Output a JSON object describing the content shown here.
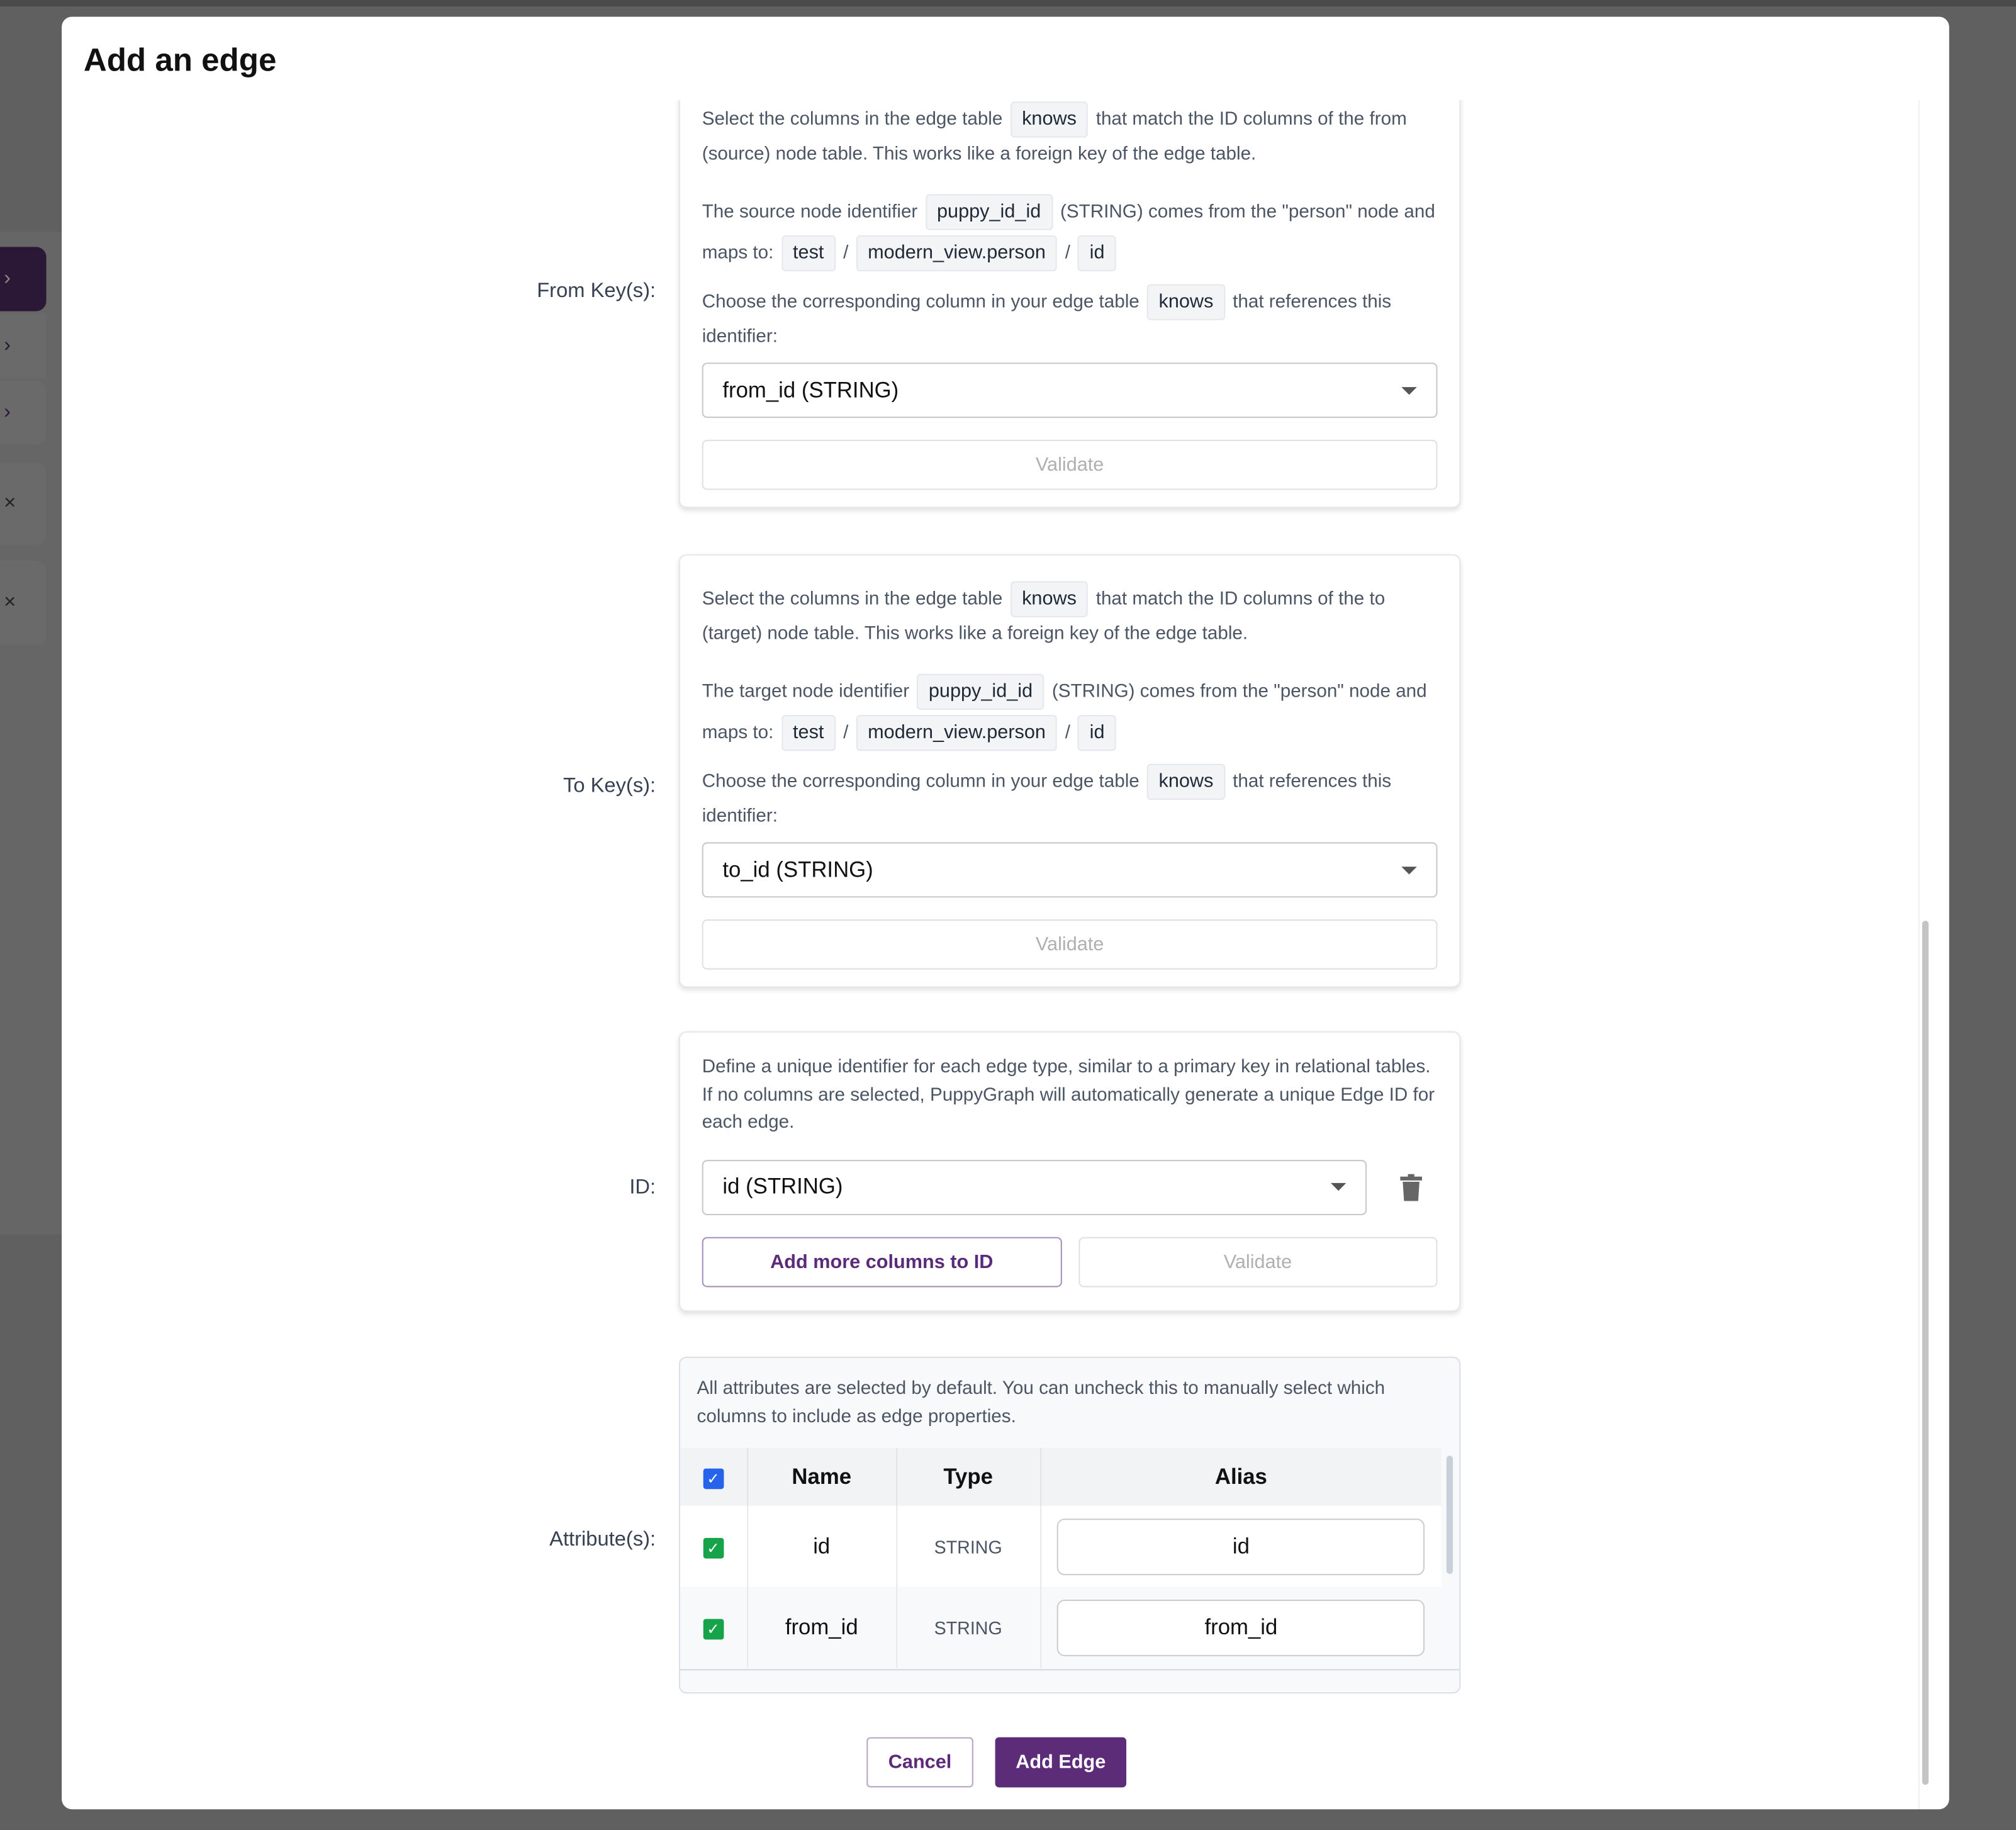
{
  "dialog": {
    "title": "Add an edge"
  },
  "sidebar": {
    "icons": [
      "chevron-right",
      "chevron-right",
      "chevron-right",
      "close",
      "close"
    ],
    "glyphs": {
      "chevron": "›",
      "close": "×"
    }
  },
  "from_key": {
    "label": "From Key(s):",
    "intro_a": "Select the columns in the edge table",
    "table": "knows",
    "intro_b": "that match the ID columns of the from (source) node table. This works like a foreign key of the edge table.",
    "ident_a": "The source node identifier",
    "identifier": "puppy_id_id",
    "ident_b": "(STRING) comes from the \"person\" node and maps to:",
    "path": [
      "test",
      "modern_view.person",
      "id"
    ],
    "sep": "/",
    "choose_a": "Choose the corresponding column in your edge table",
    "choose_b": "that references this identifier:",
    "selected": "from_id (STRING)",
    "validate": "Validate"
  },
  "to_key": {
    "label": "To Key(s):",
    "intro_a": "Select the columns in the edge table",
    "table": "knows",
    "intro_b": "that match the ID columns of the to (target) node table. This works like a foreign key of the edge table.",
    "ident_a": "The target node identifier",
    "identifier": "puppy_id_id",
    "ident_b": "(STRING) comes from the \"person\" node and maps to:",
    "path": [
      "test",
      "modern_view.person",
      "id"
    ],
    "sep": "/",
    "choose_a": "Choose the corresponding column in your edge table",
    "choose_b": "that references this identifier:",
    "selected": "to_id (STRING)",
    "validate": "Validate"
  },
  "id": {
    "label": "ID:",
    "description": "Define a unique identifier for each edge type, similar to a primary key in relational tables. If no columns are selected, PuppyGraph will automatically generate a unique Edge ID for each edge.",
    "selected": "id (STRING)",
    "add_more": "Add more columns to ID",
    "validate": "Validate"
  },
  "attributes": {
    "label": "Attribute(s):",
    "description": "All attributes are selected by default. You can uncheck this to manually select which columns to include as edge properties.",
    "columns": [
      "Name",
      "Type",
      "Alias"
    ],
    "rows": [
      {
        "name": "id",
        "type": "STRING",
        "alias": "id",
        "checked": true
      },
      {
        "name": "from_id",
        "type": "STRING",
        "alias": "from_id",
        "checked": true
      }
    ],
    "all_checked": true,
    "check": "✓"
  },
  "footer": {
    "cancel": "Cancel",
    "add": "Add Edge"
  },
  "colors": {
    "primary": "#5d2c79",
    "header_checkbox": "#2563eb",
    "row_checkbox": "#16a34a"
  }
}
